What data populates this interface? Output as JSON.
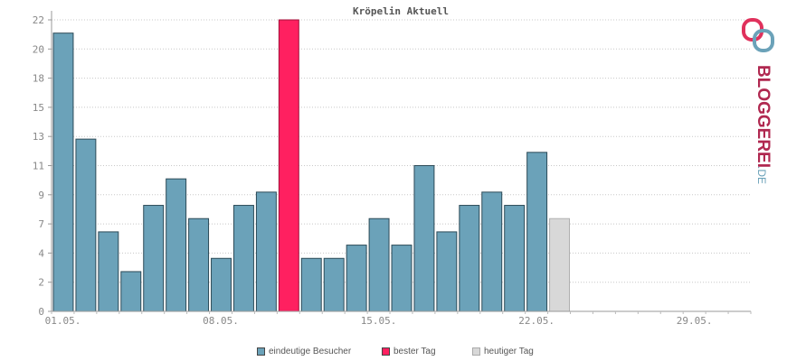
{
  "chart_data": {
    "type": "bar",
    "title": "Kröpelin Aktuell",
    "x_tick_labels": [
      "01.05.",
      "08.05.",
      "15.05.",
      "22.05.",
      "29.05."
    ],
    "y_tick_labels": [
      "0",
      "2",
      "4",
      "7",
      "9",
      "11",
      "13",
      "15",
      "18",
      "20",
      "22"
    ],
    "ylim": [
      0,
      22
    ],
    "grid": true,
    "categories": [
      "01.05.",
      "02.05.",
      "03.05.",
      "04.05.",
      "05.05.",
      "06.05.",
      "07.05.",
      "08.05.",
      "09.05.",
      "10.05.",
      "11.05.",
      "12.05.",
      "13.05.",
      "14.05.",
      "15.05.",
      "16.05.",
      "17.05.",
      "18.05.",
      "19.05.",
      "20.05.",
      "21.05.",
      "22.05.",
      "23.05.",
      "24.05.",
      "25.05.",
      "26.05.",
      "27.05.",
      "28.05.",
      "29.05.",
      "30.05.",
      "31.05."
    ],
    "values": [
      21,
      13,
      6,
      3,
      8,
      10,
      7,
      4,
      8,
      9,
      22,
      4,
      4,
      5,
      7,
      5,
      11,
      6,
      8,
      9,
      8,
      12,
      7,
      null,
      null,
      null,
      null,
      null,
      null,
      null,
      null
    ],
    "best_day_index": 10,
    "today_index": 22,
    "legend_position": "bottom",
    "series": [
      {
        "name": "eindeutige Besucher",
        "color": "#6ba2b9"
      },
      {
        "name": "bester Tag",
        "color": "#ff2060"
      },
      {
        "name": "heutiger Tag",
        "color": "#d8d8d8"
      }
    ]
  },
  "logo": {
    "text_main": "BLOGGEREI",
    "text_suffix": ".DE"
  }
}
